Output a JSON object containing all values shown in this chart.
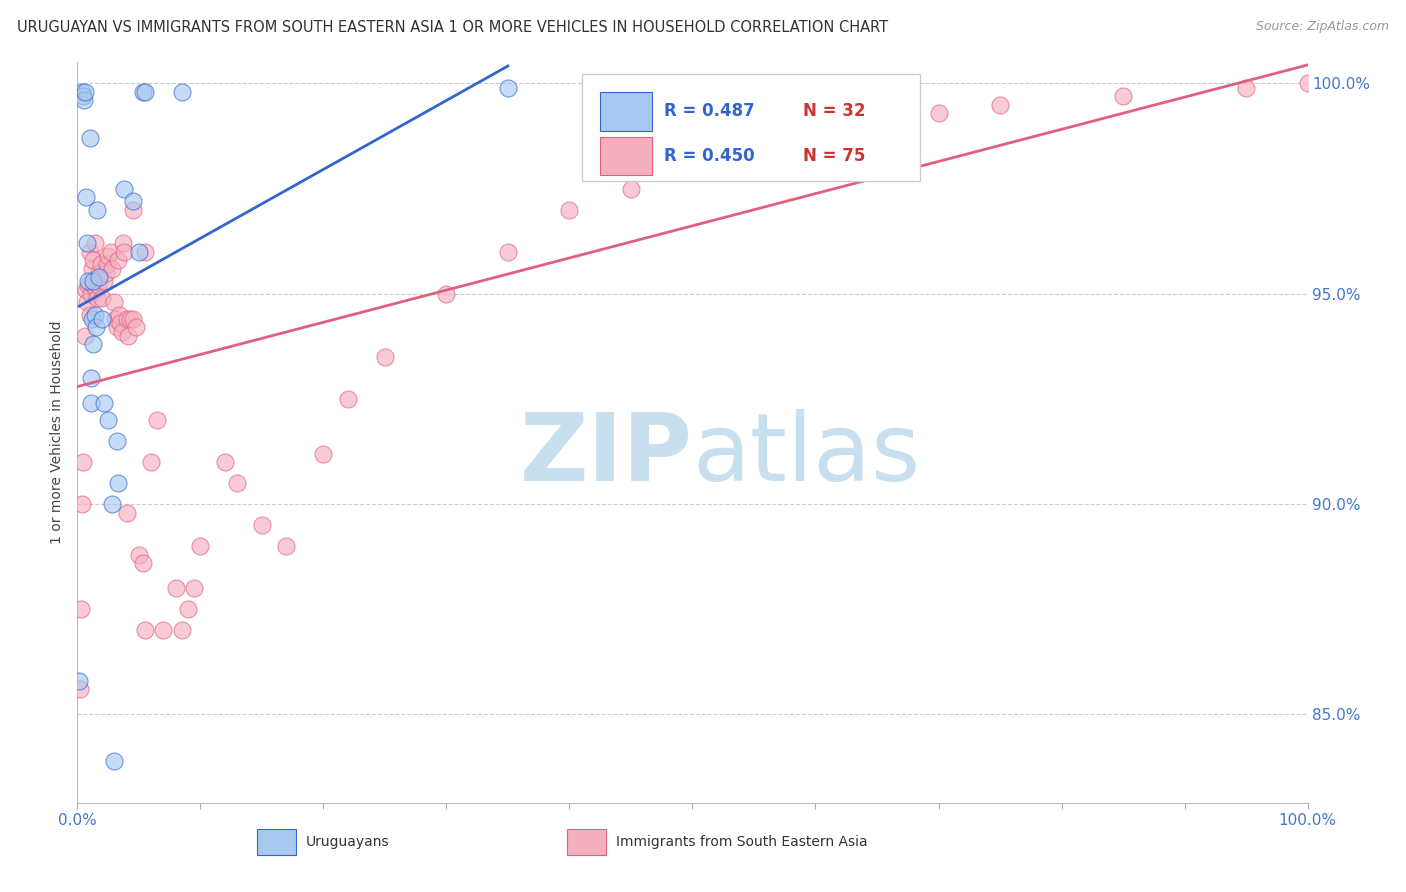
{
  "title": "URUGUAYAN VS IMMIGRANTS FROM SOUTH EASTERN ASIA 1 OR MORE VEHICLES IN HOUSEHOLD CORRELATION CHART",
  "source": "Source: ZipAtlas.com",
  "ylabel": "1 or more Vehicles in Household",
  "blue_color": "#A8C8F0",
  "pink_color": "#F5B0C0",
  "blue_line_color": "#3366CC",
  "pink_line_color": "#E06080",
  "watermark_zip": "ZIP",
  "watermark_atlas": "atlas",
  "watermark_color": "#C8DFF0",
  "background_color": "#FFFFFF",
  "grid_color": "#CCCCCC",
  "legend_r_color": "#3366CC",
  "legend_n_color": "#CC3333",
  "right_tick_color": "#4477CC",
  "bottom_tick_color": "#4477CC",
  "uruguayans_x": [
    0.0015,
    0.004,
    0.005,
    0.0055,
    0.006,
    0.007,
    0.008,
    0.009,
    0.01,
    0.011,
    0.011,
    0.012,
    0.013,
    0.013,
    0.014,
    0.015,
    0.016,
    0.018,
    0.02,
    0.022,
    0.025,
    0.028,
    0.03,
    0.032,
    0.033,
    0.038,
    0.045,
    0.05,
    0.053,
    0.055,
    0.085,
    0.35
  ],
  "uruguayans_y": [
    0.858,
    0.998,
    0.997,
    0.996,
    0.998,
    0.973,
    0.962,
    0.953,
    0.987,
    0.93,
    0.924,
    0.944,
    0.938,
    0.953,
    0.945,
    0.942,
    0.97,
    0.954,
    0.944,
    0.924,
    0.92,
    0.9,
    0.839,
    0.915,
    0.905,
    0.975,
    0.972,
    0.96,
    0.998,
    0.998,
    0.998,
    0.999
  ],
  "sea_x": [
    0.002,
    0.003,
    0.004,
    0.005,
    0.006,
    0.007,
    0.008,
    0.009,
    0.01,
    0.01,
    0.011,
    0.012,
    0.013,
    0.013,
    0.014,
    0.015,
    0.016,
    0.017,
    0.018,
    0.019,
    0.02,
    0.022,
    0.023,
    0.024,
    0.025,
    0.027,
    0.028,
    0.03,
    0.031,
    0.032,
    0.033,
    0.034,
    0.035,
    0.036,
    0.037,
    0.038,
    0.04,
    0.04,
    0.041,
    0.043,
    0.045,
    0.045,
    0.048,
    0.05,
    0.053,
    0.055,
    0.055,
    0.06,
    0.065,
    0.07,
    0.08,
    0.085,
    0.09,
    0.095,
    0.1,
    0.12,
    0.13,
    0.15,
    0.17,
    0.2,
    0.22,
    0.25,
    0.3,
    0.35,
    0.4,
    0.45,
    0.5,
    0.55,
    0.6,
    0.65,
    0.7,
    0.75,
    0.85,
    0.95,
    1.0
  ],
  "sea_y": [
    0.856,
    0.875,
    0.9,
    0.91,
    0.94,
    0.951,
    0.948,
    0.952,
    0.96,
    0.945,
    0.95,
    0.956,
    0.952,
    0.958,
    0.962,
    0.951,
    0.949,
    0.952,
    0.955,
    0.957,
    0.949,
    0.953,
    0.955,
    0.957,
    0.959,
    0.96,
    0.956,
    0.948,
    0.944,
    0.942,
    0.958,
    0.945,
    0.943,
    0.941,
    0.962,
    0.96,
    0.898,
    0.944,
    0.94,
    0.944,
    0.944,
    0.97,
    0.942,
    0.888,
    0.886,
    0.96,
    0.87,
    0.91,
    0.92,
    0.87,
    0.88,
    0.87,
    0.875,
    0.88,
    0.89,
    0.91,
    0.905,
    0.895,
    0.89,
    0.912,
    0.925,
    0.935,
    0.95,
    0.96,
    0.97,
    0.975,
    0.98,
    0.985,
    0.988,
    0.991,
    0.993,
    0.995,
    0.997,
    0.999,
    1.0
  ],
  "xmin": 0.0,
  "xmax": 1.0,
  "ymin": 0.829,
  "ymax": 1.005,
  "yticks": [
    0.85,
    0.9,
    0.95,
    1.0
  ],
  "ytick_labels": [
    "85.0%",
    "90.0%",
    "95.0%",
    "100.0%"
  ]
}
